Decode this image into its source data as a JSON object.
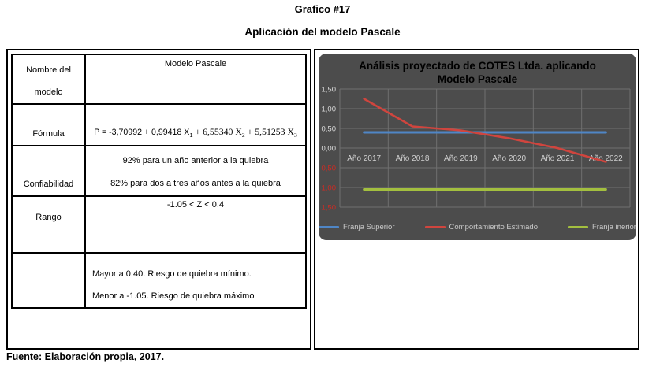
{
  "header": {
    "title": "Grafico #17",
    "subtitle": "Aplicación del modelo Pascale"
  },
  "table": {
    "rows": [
      {
        "label": "Nombre del modelo",
        "value": "Modelo Pascale"
      },
      {
        "label": "Fórmula"
      },
      {
        "label": "Confiabilidad",
        "line1": "92% para un año anterior a la quiebra",
        "line2": "82% para dos a tres años antes a la quiebra"
      },
      {
        "label": "Rango",
        "value": "-1.05 < Z < 0.4"
      },
      {
        "label": "",
        "line1": "Mayor a 0.40. Riesgo de quiebra mínimo.",
        "line2": "Menor a -1.05. Riesgo de quiebra máximo"
      }
    ],
    "formula_segments": [
      {
        "t": "P = -3,70992 + 0,99418 X",
        "sub": false,
        "serif": false
      },
      {
        "t": "1",
        "sub": true,
        "serif": false
      },
      {
        "t": " + 6,55340 X",
        "sub": false,
        "serif": true
      },
      {
        "t": "2",
        "sub": true,
        "serif": true
      },
      {
        "t": " + 5,51253 X",
        "sub": false,
        "serif": true
      },
      {
        "t": "3",
        "sub": true,
        "serif": true
      }
    ]
  },
  "chart_data": {
    "type": "line",
    "title": "Análisis proyectado de COTES Ltda. aplicando Modelo Pascale",
    "title_lines": [
      "Análisis proyectado de COTES Ltda. aplicando",
      "Modelo Pascale"
    ],
    "categories": [
      "Año 2017",
      "Año 2018",
      "Año 2019",
      "Año 2020",
      "Año 2021",
      "Año 2022"
    ],
    "series": [
      {
        "name": "Franja Superior",
        "color": "#4f86c6",
        "values": [
          0.4,
          0.4,
          0.4,
          0.4,
          0.4,
          0.4
        ]
      },
      {
        "name": "Comportamiento Estimado",
        "color": "#d0453e",
        "values": [
          1.25,
          0.55,
          0.45,
          0.25,
          0.0,
          -0.35
        ]
      },
      {
        "name": "Franja inerior",
        "color": "#a3bf3f",
        "values": [
          -1.05,
          -1.05,
          -1.05,
          -1.05,
          -1.05,
          -1.05
        ]
      }
    ],
    "y_ticks": [
      {
        "v": 1.5,
        "label": "1,50",
        "color": "#d8d8d8"
      },
      {
        "v": 1.0,
        "label": "1,00",
        "color": "#d8d8d8"
      },
      {
        "v": 0.5,
        "label": "0,50",
        "color": "#d8d8d8"
      },
      {
        "v": 0.0,
        "label": "0,00",
        "color": "#d8d8d8"
      },
      {
        "v": -0.5,
        "label": "0,50",
        "color": "#cc2b24"
      },
      {
        "v": -1.0,
        "label": "1,00",
        "color": "#cc2b24"
      },
      {
        "v": -1.5,
        "label": "1,50",
        "color": "#cc2b24"
      }
    ],
    "ylim": [
      -1.5,
      1.5
    ],
    "grid": true,
    "legend_position": "bottom",
    "colors": {
      "background": "#4c4c4c",
      "grid": "#6f6f6f",
      "text": "#cfcfcf",
      "title": "#d9d9d9"
    }
  },
  "footer": {
    "source": "Fuente: Elaboración propia, 2017."
  }
}
